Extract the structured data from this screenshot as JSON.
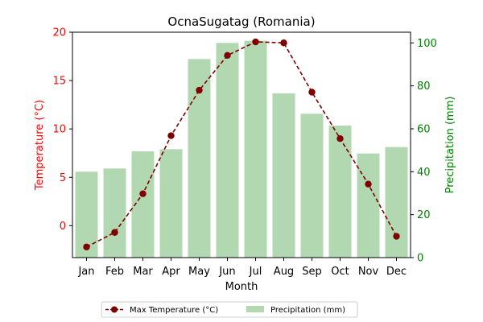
{
  "chart_data": {
    "type": "bar+line",
    "title": "OcnaSugatag (Romania)",
    "xlabel": "Month",
    "categories": [
      "Jan",
      "Feb",
      "Mar",
      "Apr",
      "May",
      "Jun",
      "Jul",
      "Aug",
      "Sep",
      "Oct",
      "Nov",
      "Dec"
    ],
    "left_axis": {
      "label": "Temperature (°C)",
      "ylim": [
        -3.3,
        20.0
      ],
      "ticks": [
        0,
        5,
        10,
        15,
        20
      ],
      "color": "#ff0000"
    },
    "right_axis": {
      "label": "Precipitation (mm)",
      "ylim": [
        0,
        105
      ],
      "ticks": [
        0,
        20,
        40,
        60,
        80,
        100
      ],
      "color": "#008000"
    },
    "series": [
      {
        "name": "Max Temperature (°C)",
        "kind": "line",
        "axis": "left",
        "color": "#800000",
        "values": [
          -2.2,
          -0.7,
          3.3,
          9.3,
          14.0,
          17.6,
          19.0,
          18.9,
          13.8,
          9.0,
          4.3,
          -1.1
        ]
      },
      {
        "name": "Precipitation (mm)",
        "kind": "bar",
        "axis": "right",
        "color": "#b2d8b2",
        "values": [
          40.0,
          41.5,
          49.5,
          50.5,
          92.5,
          100.0,
          101.0,
          76.5,
          67.0,
          61.5,
          48.5,
          51.5
        ]
      }
    ],
    "legend_position": "bottom-center",
    "grid": false
  }
}
